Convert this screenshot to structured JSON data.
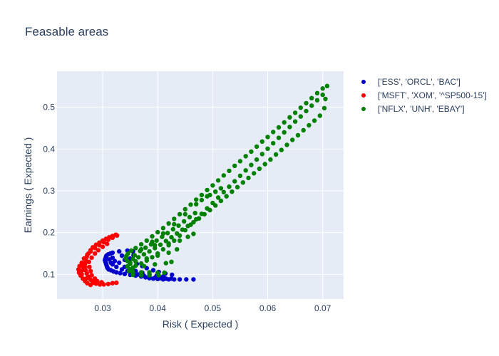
{
  "chart_data": {
    "type": "scatter",
    "title": "Feasable areas",
    "xlabel": "Risk ( Expected )",
    "ylabel": "Earnings ( Expected )",
    "xlim": [
      0.0217,
      0.0738
    ],
    "ylim": [
      0.041,
      0.5865
    ],
    "xticks": [
      0.03,
      0.04,
      0.05,
      0.06,
      0.07
    ],
    "xtick_labels": [
      "0.03",
      "0.04",
      "0.05",
      "0.06",
      "0.07"
    ],
    "yticks": [
      0.1,
      0.2,
      0.3,
      0.4,
      0.5
    ],
    "ytick_labels": [
      "0.1",
      "0.2",
      "0.3",
      "0.4",
      "0.5"
    ],
    "grid": true,
    "legend_position": "top-right",
    "plot_background": "#e5ecf6",
    "series": [
      {
        "name": "['ESS', 'ORCL', 'BAC']",
        "color": "#0000cc",
        "points": [
          [
            0.0318,
            0.152
          ],
          [
            0.0314,
            0.15
          ],
          [
            0.031,
            0.148
          ],
          [
            0.0307,
            0.145
          ],
          [
            0.0306,
            0.142
          ],
          [
            0.0305,
            0.138
          ],
          [
            0.0304,
            0.134
          ],
          [
            0.0305,
            0.13
          ],
          [
            0.0306,
            0.126
          ],
          [
            0.0307,
            0.122
          ],
          [
            0.0308,
            0.118
          ],
          [
            0.0309,
            0.115
          ],
          [
            0.0311,
            0.112
          ],
          [
            0.0315,
            0.11
          ],
          [
            0.032,
            0.107
          ],
          [
            0.0325,
            0.105
          ],
          [
            0.0332,
            0.103
          ],
          [
            0.034,
            0.101
          ],
          [
            0.035,
            0.099
          ],
          [
            0.036,
            0.097
          ],
          [
            0.037,
            0.095
          ],
          [
            0.0378,
            0.093
          ],
          [
            0.0385,
            0.091
          ],
          [
            0.0392,
            0.09
          ],
          [
            0.04,
            0.089
          ],
          [
            0.041,
            0.088
          ],
          [
            0.042,
            0.088
          ],
          [
            0.043,
            0.088
          ],
          [
            0.044,
            0.088
          ],
          [
            0.0452,
            0.088
          ],
          [
            0.0465,
            0.088
          ],
          [
            0.0318,
            0.14
          ],
          [
            0.0322,
            0.132
          ],
          [
            0.0318,
            0.124
          ],
          [
            0.0325,
            0.118
          ],
          [
            0.0335,
            0.112
          ],
          [
            0.0345,
            0.108
          ],
          [
            0.0355,
            0.104
          ],
          [
            0.0365,
            0.1
          ],
          [
            0.0375,
            0.097
          ],
          [
            0.0385,
            0.094
          ],
          [
            0.0395,
            0.092
          ],
          [
            0.0405,
            0.091
          ],
          [
            0.0415,
            0.09
          ],
          [
            0.0425,
            0.09
          ],
          [
            0.033,
            0.155
          ],
          [
            0.0345,
            0.157
          ],
          [
            0.0355,
            0.155
          ],
          [
            0.0335,
            0.145
          ],
          [
            0.034,
            0.135
          ],
          [
            0.033,
            0.128
          ],
          [
            0.0312,
            0.136
          ],
          [
            0.0315,
            0.128
          ],
          [
            0.034,
            0.118
          ],
          [
            0.035,
            0.112
          ],
          [
            0.036,
            0.108
          ],
          [
            0.0372,
            0.104
          ],
          [
            0.0385,
            0.1
          ],
          [
            0.0398,
            0.097
          ],
          [
            0.041,
            0.095
          ],
          [
            0.0356,
            0.146
          ],
          [
            0.035,
            0.138
          ],
          [
            0.0348,
            0.13
          ],
          [
            0.0362,
            0.125
          ],
          [
            0.0372,
            0.12
          ],
          [
            0.038,
            0.115
          ],
          [
            0.0392,
            0.11
          ],
          [
            0.0402,
            0.106
          ],
          [
            0.0414,
            0.102
          ],
          [
            0.0426,
            0.099
          ]
        ]
      },
      {
        "name": "['MSFT', 'XOM', '^SP500-15']",
        "color": "#ff0000",
        "points": [
          [
            0.0324,
            0.195
          ],
          [
            0.0318,
            0.192
          ],
          [
            0.0312,
            0.189
          ],
          [
            0.0306,
            0.185
          ],
          [
            0.03,
            0.181
          ],
          [
            0.0294,
            0.176
          ],
          [
            0.0288,
            0.171
          ],
          [
            0.0282,
            0.165
          ],
          [
            0.0278,
            0.158
          ],
          [
            0.0274,
            0.15
          ],
          [
            0.0271,
            0.142
          ],
          [
            0.0269,
            0.134
          ],
          [
            0.0268,
            0.126
          ],
          [
            0.0268,
            0.118
          ],
          [
            0.0269,
            0.11
          ],
          [
            0.0271,
            0.102
          ],
          [
            0.0274,
            0.094
          ],
          [
            0.0278,
            0.087
          ],
          [
            0.0282,
            0.082
          ],
          [
            0.0288,
            0.078
          ],
          [
            0.0295,
            0.076
          ],
          [
            0.0302,
            0.076
          ],
          [
            0.031,
            0.077
          ],
          [
            0.0318,
            0.079
          ],
          [
            0.0325,
            0.08
          ],
          [
            0.0258,
            0.12
          ],
          [
            0.0256,
            0.112
          ],
          [
            0.0257,
            0.104
          ],
          [
            0.026,
            0.097
          ],
          [
            0.0264,
            0.09
          ],
          [
            0.0268,
            0.084
          ],
          [
            0.0272,
            0.079
          ],
          [
            0.0278,
            0.075
          ],
          [
            0.0262,
            0.128
          ],
          [
            0.0266,
            0.138
          ],
          [
            0.0272,
            0.147
          ],
          [
            0.0278,
            0.155
          ],
          [
            0.0286,
            0.163
          ],
          [
            0.0294,
            0.17
          ],
          [
            0.0302,
            0.177
          ],
          [
            0.031,
            0.183
          ],
          [
            0.0318,
            0.188
          ],
          [
            0.0326,
            0.193
          ],
          [
            0.0275,
            0.13
          ],
          [
            0.028,
            0.14
          ],
          [
            0.0286,
            0.15
          ],
          [
            0.0292,
            0.158
          ],
          [
            0.03,
            0.166
          ],
          [
            0.0308,
            0.173
          ],
          [
            0.0276,
            0.118
          ],
          [
            0.0278,
            0.108
          ],
          [
            0.028,
            0.098
          ],
          [
            0.0286,
            0.09
          ],
          [
            0.029,
            0.084
          ],
          [
            0.0298,
            0.081
          ],
          [
            0.0262,
            0.1
          ],
          [
            0.0263,
            0.11
          ],
          [
            0.0264,
            0.12
          ],
          [
            0.027,
            0.09
          ],
          [
            0.0284,
            0.08
          ]
        ]
      },
      {
        "name": "['NFLX', 'UNH', 'EBAY']",
        "color": "#008000",
        "points": [
          [
            0.0708,
            0.551
          ],
          [
            0.07,
            0.545
          ],
          [
            0.069,
            0.534
          ],
          [
            0.068,
            0.522
          ],
          [
            0.067,
            0.51
          ],
          [
            0.066,
            0.499
          ],
          [
            0.065,
            0.487
          ],
          [
            0.064,
            0.476
          ],
          [
            0.063,
            0.464
          ],
          [
            0.062,
            0.452
          ],
          [
            0.061,
            0.441
          ],
          [
            0.06,
            0.429
          ],
          [
            0.059,
            0.418
          ],
          [
            0.058,
            0.406
          ],
          [
            0.057,
            0.394
          ],
          [
            0.056,
            0.383
          ],
          [
            0.055,
            0.371
          ],
          [
            0.054,
            0.36
          ],
          [
            0.053,
            0.348
          ],
          [
            0.052,
            0.337
          ],
          [
            0.051,
            0.325
          ],
          [
            0.05,
            0.313
          ],
          [
            0.049,
            0.302
          ],
          [
            0.048,
            0.29
          ],
          [
            0.047,
            0.279
          ],
          [
            0.046,
            0.267
          ],
          [
            0.045,
            0.256
          ],
          [
            0.044,
            0.244
          ],
          [
            0.043,
            0.233
          ],
          [
            0.042,
            0.222
          ],
          [
            0.041,
            0.211
          ],
          [
            0.04,
            0.201
          ],
          [
            0.039,
            0.191
          ],
          [
            0.038,
            0.181
          ],
          [
            0.037,
            0.172
          ],
          [
            0.036,
            0.163
          ],
          [
            0.0352,
            0.157
          ],
          [
            0.0346,
            0.15
          ],
          [
            0.0343,
            0.144
          ],
          [
            0.0342,
            0.138
          ],
          [
            0.0345,
            0.132
          ],
          [
            0.035,
            0.128
          ],
          [
            0.07,
            0.53
          ],
          [
            0.069,
            0.517
          ],
          [
            0.068,
            0.504
          ],
          [
            0.067,
            0.491
          ],
          [
            0.066,
            0.478
          ],
          [
            0.065,
            0.466
          ],
          [
            0.064,
            0.453
          ],
          [
            0.063,
            0.44
          ],
          [
            0.062,
            0.427
          ],
          [
            0.061,
            0.414
          ],
          [
            0.06,
            0.401
          ],
          [
            0.059,
            0.388
          ],
          [
            0.058,
            0.375
          ],
          [
            0.057,
            0.362
          ],
          [
            0.056,
            0.349
          ],
          [
            0.055,
            0.336
          ],
          [
            0.054,
            0.323
          ],
          [
            0.053,
            0.31
          ],
          [
            0.052,
            0.297
          ],
          [
            0.051,
            0.284
          ],
          [
            0.05,
            0.271
          ],
          [
            0.049,
            0.258
          ],
          [
            0.048,
            0.245
          ],
          [
            0.047,
            0.232
          ],
          [
            0.046,
            0.219
          ],
          [
            0.045,
            0.206
          ],
          [
            0.044,
            0.193
          ],
          [
            0.043,
            0.181
          ],
          [
            0.042,
            0.17
          ],
          [
            0.041,
            0.16
          ],
          [
            0.04,
            0.15
          ],
          [
            0.039,
            0.141
          ],
          [
            0.038,
            0.133
          ],
          [
            0.037,
            0.126
          ],
          [
            0.036,
            0.121
          ],
          [
            0.035,
            0.125
          ],
          [
            0.0358,
            0.146
          ],
          [
            0.0368,
            0.156
          ],
          [
            0.0378,
            0.164
          ],
          [
            0.0388,
            0.172
          ],
          [
            0.0398,
            0.181
          ],
          [
            0.0408,
            0.19
          ],
          [
            0.0418,
            0.199
          ],
          [
            0.0428,
            0.208
          ],
          [
            0.0438,
            0.217
          ],
          [
            0.0448,
            0.227
          ],
          [
            0.0458,
            0.237
          ],
          [
            0.0468,
            0.247
          ],
          [
            0.0355,
            0.137
          ],
          [
            0.0365,
            0.141
          ],
          [
            0.0375,
            0.148
          ],
          [
            0.0385,
            0.155
          ],
          [
            0.0395,
            0.163
          ],
          [
            0.0405,
            0.171
          ],
          [
            0.0415,
            0.18
          ],
          [
            0.0425,
            0.189
          ],
          [
            0.0435,
            0.198
          ],
          [
            0.0445,
            0.207
          ],
          [
            0.0455,
            0.216
          ],
          [
            0.0465,
            0.225
          ],
          [
            0.0475,
            0.234
          ],
          [
            0.0485,
            0.244
          ],
          [
            0.0495,
            0.254
          ],
          [
            0.0505,
            0.265
          ],
          [
            0.0515,
            0.276
          ],
          [
            0.0525,
            0.287
          ],
          [
            0.0535,
            0.298
          ],
          [
            0.0545,
            0.309
          ],
          [
            0.0555,
            0.32
          ],
          [
            0.0565,
            0.331
          ],
          [
            0.0575,
            0.342
          ],
          [
            0.0585,
            0.353
          ],
          [
            0.0595,
            0.364
          ],
          [
            0.0605,
            0.375
          ],
          [
            0.0615,
            0.387
          ],
          [
            0.0625,
            0.398
          ],
          [
            0.0635,
            0.41
          ],
          [
            0.0645,
            0.422
          ],
          [
            0.0655,
            0.433
          ],
          [
            0.0665,
            0.445
          ],
          [
            0.0675,
            0.457
          ],
          [
            0.0685,
            0.468
          ],
          [
            0.0695,
            0.48
          ],
          [
            0.0703,
            0.498
          ],
          [
            0.0705,
            0.52
          ],
          [
            0.0495,
            0.29
          ],
          [
            0.0505,
            0.298
          ],
          [
            0.0515,
            0.306
          ],
          [
            0.0395,
            0.17
          ],
          [
            0.042,
            0.174
          ],
          [
            0.044,
            0.181
          ],
          [
            0.0455,
            0.19
          ],
          [
            0.0465,
            0.197
          ],
          [
            0.036,
            0.131
          ],
          [
            0.038,
            0.138
          ],
          [
            0.04,
            0.145
          ],
          [
            0.042,
            0.152
          ],
          [
            0.0435,
            0.16
          ],
          [
            0.0355,
            0.116
          ],
          [
            0.0375,
            0.12
          ],
          [
            0.0395,
            0.124
          ],
          [
            0.0415,
            0.127
          ],
          [
            0.0425,
            0.13
          ],
          [
            0.0355,
            0.106
          ],
          [
            0.037,
            0.105
          ],
          [
            0.0385,
            0.105
          ],
          [
            0.04,
            0.104
          ],
          [
            0.0412,
            0.104
          ],
          [
            0.0355,
            0.099
          ],
          [
            0.037,
            0.098
          ],
          [
            0.0385,
            0.098
          ],
          [
            0.0402,
            0.098
          ],
          [
            0.035,
            0.112
          ],
          [
            0.047,
            0.268
          ],
          [
            0.048,
            0.278
          ],
          [
            0.049,
            0.287
          ],
          [
            0.045,
            0.244
          ],
          [
            0.043,
            0.22
          ],
          [
            0.041,
            0.198
          ],
          [
            0.039,
            0.178
          ],
          [
            0.037,
            0.16
          ],
          [
            0.0345,
            0.119
          ],
          [
            0.0348,
            0.108
          ]
        ]
      }
    ]
  }
}
